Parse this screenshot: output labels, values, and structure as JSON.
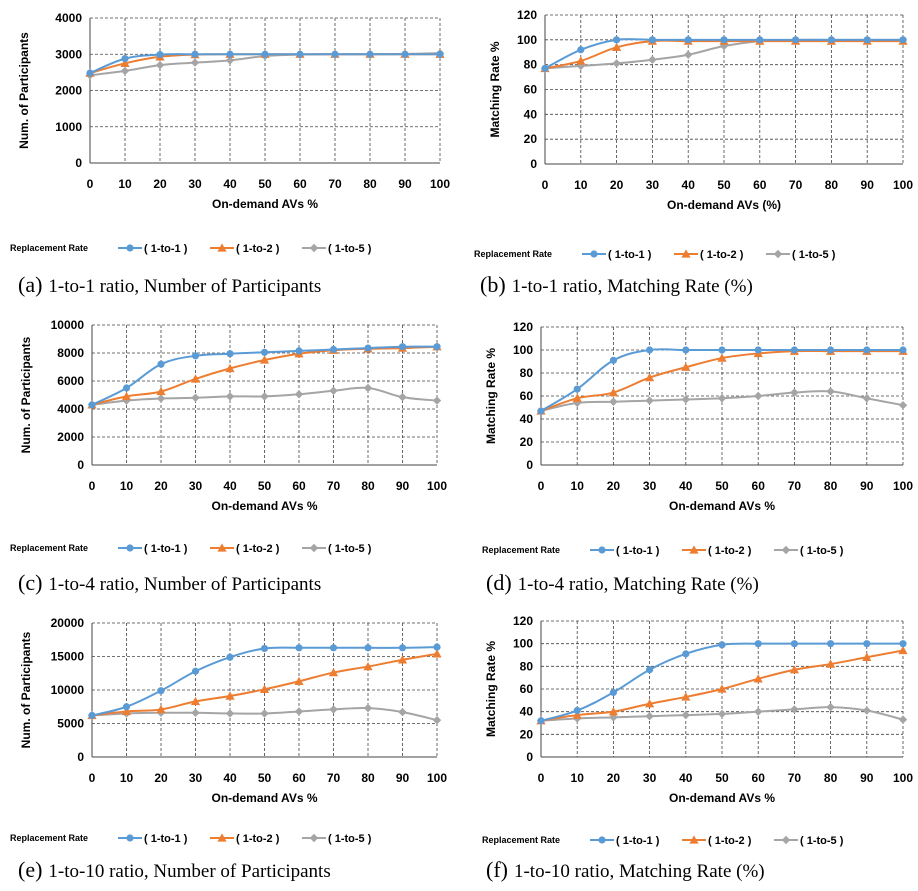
{
  "chart_data": [
    {
      "id": "a",
      "type": "line",
      "caption_letter": "(a)",
      "caption_text": "1-to-1 ratio, Number of Participants",
      "xlabel": "On-demand AVs %",
      "ylabel": "Num. of Participants",
      "x": [
        0,
        10,
        20,
        30,
        40,
        50,
        60,
        70,
        80,
        90,
        100
      ],
      "ylim": [
        0,
        4000
      ],
      "yticks": [
        0,
        1000,
        2000,
        3000,
        4000
      ],
      "legend_title": "Replacement Rate",
      "series": [
        {
          "name": "( 1-to-1 )",
          "color": "#5B9BD5",
          "marker": "circle",
          "values": [
            2480,
            2880,
            2990,
            3000,
            3000,
            3000,
            3000,
            3000,
            3000,
            3000,
            3000
          ]
        },
        {
          "name": "( 1-to-2 )",
          "color": "#ED7D31",
          "marker": "triangle",
          "values": [
            2480,
            2750,
            2930,
            2990,
            3000,
            3000,
            3000,
            3000,
            3000,
            3000,
            3000
          ]
        },
        {
          "name": "( 1-to-5 )",
          "color": "#A5A5A5",
          "marker": "diamond",
          "values": [
            2420,
            2540,
            2700,
            2770,
            2830,
            2950,
            2990,
            3000,
            3000,
            3010,
            3030
          ]
        }
      ]
    },
    {
      "id": "b",
      "type": "line",
      "caption_letter": "(b)",
      "caption_text": "1-to-1 ratio, Matching Rate (%)",
      "xlabel": "On-demand AVs (%)",
      "ylabel": "Matching Rate %",
      "x": [
        0,
        10,
        20,
        30,
        40,
        50,
        60,
        70,
        80,
        90,
        100
      ],
      "ylim": [
        0,
        120
      ],
      "yticks": [
        0,
        20,
        40,
        60,
        80,
        100,
        120
      ],
      "legend_title": "Replacement Rate",
      "series": [
        {
          "name": "( 1-to-1 )",
          "color": "#5B9BD5",
          "marker": "circle",
          "values": [
            77,
            92,
            100,
            100,
            100,
            100,
            100,
            100,
            100,
            100,
            100
          ]
        },
        {
          "name": "( 1-to-2 )",
          "color": "#ED7D31",
          "marker": "triangle",
          "values": [
            77,
            83,
            94,
            99,
            99,
            99,
            99,
            99,
            99,
            99,
            99
          ]
        },
        {
          "name": "( 1-to-5 )",
          "color": "#A5A5A5",
          "marker": "diamond",
          "values": [
            77,
            79,
            81,
            84,
            88,
            95,
            99,
            100,
            100,
            100,
            100
          ]
        }
      ]
    },
    {
      "id": "c",
      "type": "line",
      "caption_letter": "(c)",
      "caption_text": "1-to-4 ratio, Number of Participants",
      "xlabel": "On-demand AVs %",
      "ylabel": "Num. of Participants",
      "x": [
        0,
        10,
        20,
        30,
        40,
        50,
        60,
        70,
        80,
        90,
        100
      ],
      "ylim": [
        0,
        10000
      ],
      "yticks": [
        0,
        2000,
        4000,
        6000,
        8000,
        10000
      ],
      "legend_title": "Replacement Rate",
      "series": [
        {
          "name": "( 1-to-1 )",
          "color": "#5B9BD5",
          "marker": "circle",
          "values": [
            4300,
            5500,
            7200,
            7800,
            7950,
            8050,
            8150,
            8250,
            8350,
            8450,
            8450
          ]
        },
        {
          "name": "( 1-to-2 )",
          "color": "#ED7D31",
          "marker": "triangle",
          "values": [
            4300,
            4900,
            5250,
            6150,
            6900,
            7500,
            7950,
            8200,
            8300,
            8350,
            8450
          ]
        },
        {
          "name": "( 1-to-5 )",
          "color": "#A5A5A5",
          "marker": "diamond",
          "values": [
            4300,
            4600,
            4750,
            4800,
            4900,
            4900,
            5050,
            5300,
            5500,
            4850,
            4600
          ]
        }
      ]
    },
    {
      "id": "d",
      "type": "line",
      "caption_letter": "(d)",
      "caption_text": "1-to-4 ratio, Matching Rate (%)",
      "xlabel": "On-demand AVs %",
      "ylabel": "Matching Rate %",
      "x": [
        0,
        10,
        20,
        30,
        40,
        50,
        60,
        70,
        80,
        90,
        100
      ],
      "ylim": [
        0,
        120
      ],
      "yticks": [
        0,
        20,
        40,
        60,
        80,
        100,
        120
      ],
      "legend_title": "Replacement Rate",
      "series": [
        {
          "name": "( 1-to-1 )",
          "color": "#5B9BD5",
          "marker": "circle",
          "values": [
            47,
            66,
            91,
            100,
            100,
            100,
            100,
            100,
            100,
            100,
            100
          ]
        },
        {
          "name": "( 1-to-2 )",
          "color": "#ED7D31",
          "marker": "triangle",
          "values": [
            47,
            58,
            63,
            76,
            85,
            93,
            97,
            99,
            99,
            99,
            99
          ]
        },
        {
          "name": "( 1-to-5 )",
          "color": "#A5A5A5",
          "marker": "diamond",
          "values": [
            47,
            54,
            55,
            56,
            57,
            58,
            60,
            63,
            64,
            58,
            52
          ]
        }
      ]
    },
    {
      "id": "e",
      "type": "line",
      "caption_letter": "(e)",
      "caption_text": "1-to-10 ratio, Number of Participants",
      "xlabel": "On-demand AVs %",
      "ylabel": "Num. of Participants",
      "x": [
        0,
        10,
        20,
        30,
        40,
        50,
        60,
        70,
        80,
        90,
        100
      ],
      "ylim": [
        0,
        20000
      ],
      "yticks": [
        0,
        5000,
        10000,
        15000,
        20000
      ],
      "legend_title": "Replacement Rate",
      "series": [
        {
          "name": "( 1-to-1 )",
          "color": "#5B9BD5",
          "marker": "circle",
          "values": [
            6200,
            7500,
            9900,
            12800,
            14900,
            16200,
            16300,
            16300,
            16300,
            16300,
            16400
          ]
        },
        {
          "name": "( 1-to-2 )",
          "color": "#ED7D31",
          "marker": "triangle",
          "values": [
            6200,
            6800,
            7100,
            8300,
            9100,
            10100,
            11300,
            12600,
            13500,
            14500,
            15400
          ]
        },
        {
          "name": "( 1-to-5 )",
          "color": "#A5A5A5",
          "marker": "diamond",
          "values": [
            6200,
            6500,
            6600,
            6600,
            6500,
            6500,
            6800,
            7100,
            7300,
            6700,
            5500
          ]
        }
      ]
    },
    {
      "id": "f",
      "type": "line",
      "caption_letter": "(f)",
      "caption_text": "1-to-10 ratio, Matching Rate (%)",
      "xlabel": "On-demand AVs %",
      "ylabel": "Matching Rate %",
      "x": [
        0,
        10,
        20,
        30,
        40,
        50,
        60,
        70,
        80,
        90,
        100
      ],
      "ylim": [
        0,
        120
      ],
      "yticks": [
        0,
        20,
        40,
        60,
        80,
        100,
        120
      ],
      "legend_title": "Replacement Rate",
      "series": [
        {
          "name": "( 1-to-1 )",
          "color": "#5B9BD5",
          "marker": "circle",
          "values": [
            32,
            41,
            57,
            77,
            91,
            99,
            100,
            100,
            100,
            100,
            100
          ]
        },
        {
          "name": "( 1-to-2 )",
          "color": "#ED7D31",
          "marker": "triangle",
          "values": [
            32,
            37,
            40,
            47,
            53,
            60,
            69,
            77,
            82,
            88,
            94
          ]
        },
        {
          "name": "( 1-to-5 )",
          "color": "#A5A5A5",
          "marker": "diamond",
          "values": [
            32,
            34,
            35,
            36,
            37,
            38,
            40,
            42,
            44,
            41,
            33
          ]
        }
      ]
    }
  ]
}
